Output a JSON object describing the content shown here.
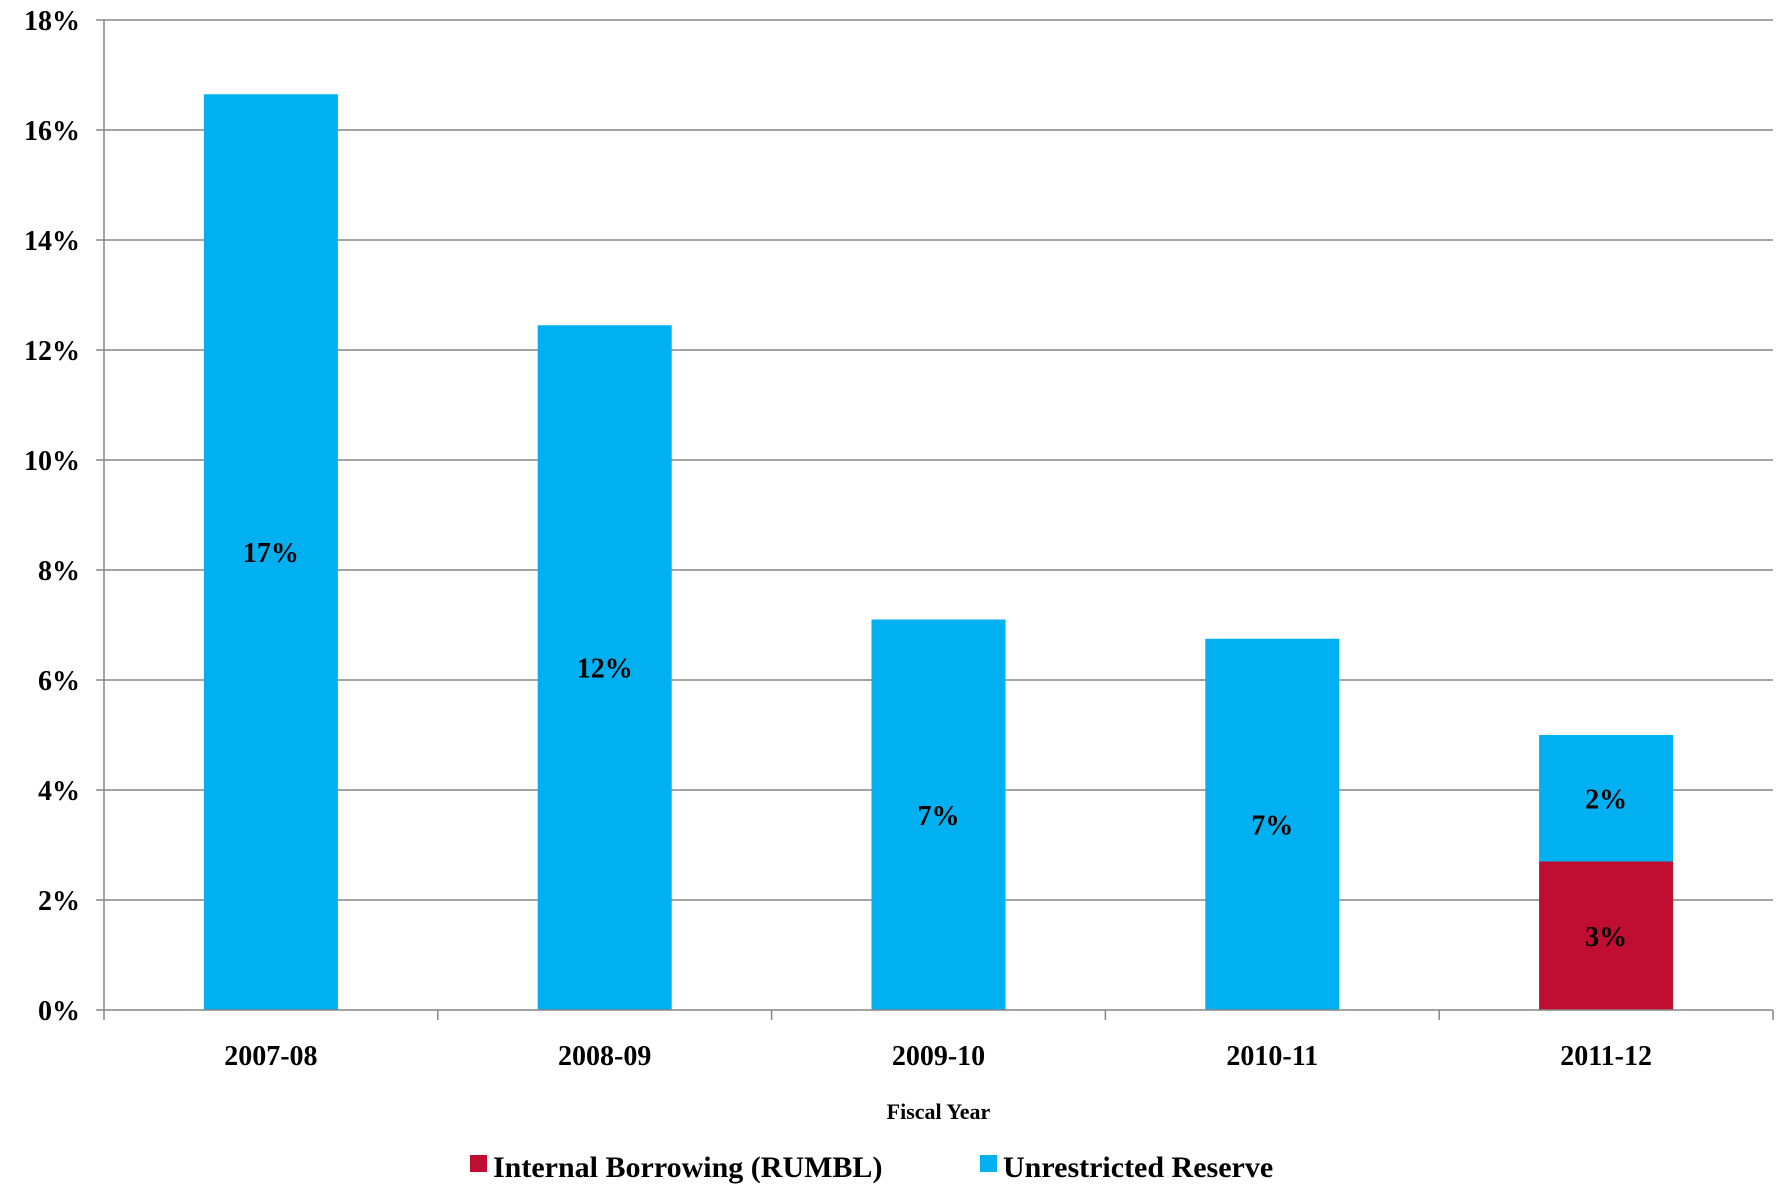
{
  "chart_data": {
    "type": "bar",
    "stacked": true,
    "categories": [
      "2007-08",
      "2008-09",
      "2009-10",
      "2010-11",
      "2011-12"
    ],
    "series": [
      {
        "name": "Internal Borrowing (RUMBL)",
        "color": "#C00D32",
        "values": [
          0,
          0,
          0,
          0,
          2.7
        ],
        "labels": [
          "",
          "",
          "",
          "",
          "3%"
        ]
      },
      {
        "name": "Unrestricted Reserve",
        "color": "#00B0F0",
        "values": [
          16.65,
          12.45,
          7.1,
          6.75,
          2.3
        ],
        "labels": [
          "17%",
          "12%",
          "7%",
          "7%",
          "2%"
        ]
      }
    ],
    "xlabel": "Fiscal Year",
    "ylabel": "",
    "ylim": [
      0,
      18
    ],
    "yticks": [
      "0%",
      "2%",
      "4%",
      "6%",
      "8%",
      "10%",
      "12%",
      "14%",
      "16%",
      "18%"
    ],
    "grid": true,
    "legend_position": "bottom"
  }
}
